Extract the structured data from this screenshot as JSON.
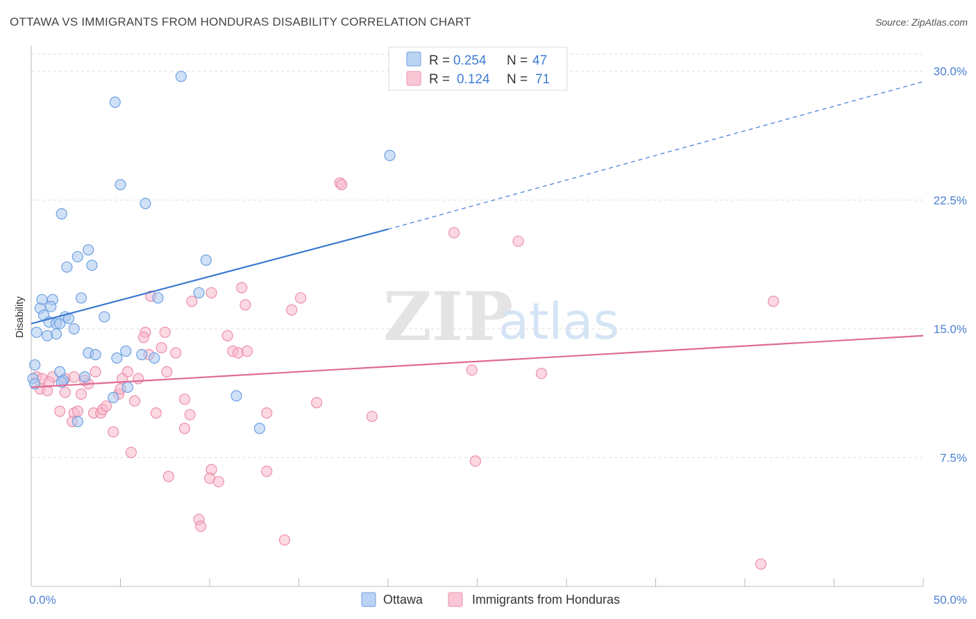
{
  "header": {
    "title": "OTTAWA VS IMMIGRANTS FROM HONDURAS DISABILITY CORRELATION CHART",
    "source": "Source: ZipAtlas.com"
  },
  "watermark": {
    "zip": "ZIP",
    "atlas": "atlas"
  },
  "legend": {
    "rows": [
      {
        "r_label": "R = ",
        "r_value": "0.254",
        "n_label": "N = ",
        "n_value": "47",
        "color": "#a9c8f0"
      },
      {
        "r_label": "R = ",
        "r_value": "0.124",
        "n_label": "N = ",
        "n_value": "71",
        "color": "#f7b8ca"
      }
    ]
  },
  "chart_data": {
    "type": "scatter",
    "title": "OTTAWA VS IMMIGRANTS FROM HONDURAS DISABILITY CORRELATION CHART",
    "xlabel": "",
    "ylabel": "Disability",
    "xlim": [
      0,
      50
    ],
    "ylim": [
      0,
      31
    ],
    "x_tick_labels": [
      "0.0%",
      "50.0%"
    ],
    "y_ticks": [
      7.5,
      15.0,
      22.5,
      30.0
    ],
    "y_tick_labels": [
      "7.5%",
      "15.0%",
      "22.5%",
      "30.0%"
    ],
    "grid": true,
    "legend_position": "top-center",
    "colors": {
      "ottawa_fill": "#a9c8f0",
      "ottawa_stroke": "#6d9fe0",
      "ottawa_line": "#3a78d0",
      "honduras_fill": "#f7b8ca",
      "honduras_stroke": "#ec8fab",
      "honduras_line": "#e06a93",
      "axis_label": "#4a7fd0",
      "grid": "#dddddd"
    },
    "series": [
      {
        "name": "Ottawa",
        "color": "#a9c8f0",
        "trend": {
          "x0": 0,
          "y0": 15.3,
          "x1": 20,
          "y1": 20.8,
          "x_dash_end": 50,
          "y_dash_end": 29.4
        },
        "points": [
          [
            8.4,
            29.7
          ],
          [
            4.7,
            28.2
          ],
          [
            20.1,
            25.1
          ],
          [
            5.0,
            23.4
          ],
          [
            6.4,
            22.3
          ],
          [
            1.7,
            21.7
          ],
          [
            3.2,
            19.6
          ],
          [
            9.8,
            19.0
          ],
          [
            2.6,
            19.2
          ],
          [
            2.0,
            18.6
          ],
          [
            3.4,
            18.7
          ],
          [
            0.6,
            16.7
          ],
          [
            1.2,
            16.7
          ],
          [
            2.8,
            16.8
          ],
          [
            9.4,
            17.1
          ],
          [
            7.1,
            16.8
          ],
          [
            0.5,
            16.2
          ],
          [
            1.1,
            16.3
          ],
          [
            0.7,
            15.8
          ],
          [
            1.0,
            15.4
          ],
          [
            1.9,
            15.7
          ],
          [
            2.1,
            15.6
          ],
          [
            4.1,
            15.7
          ],
          [
            1.4,
            15.3
          ],
          [
            1.6,
            15.3
          ],
          [
            2.4,
            15.0
          ],
          [
            0.3,
            14.8
          ],
          [
            1.4,
            14.7
          ],
          [
            0.9,
            14.6
          ],
          [
            5.3,
            13.7
          ],
          [
            3.2,
            13.6
          ],
          [
            3.6,
            13.5
          ],
          [
            4.8,
            13.3
          ],
          [
            6.2,
            13.5
          ],
          [
            6.9,
            13.3
          ],
          [
            0.2,
            12.9
          ],
          [
            1.6,
            12.5
          ],
          [
            3.0,
            12.2
          ],
          [
            1.8,
            12.0
          ],
          [
            0.1,
            12.1
          ],
          [
            5.4,
            11.6
          ],
          [
            4.6,
            11.0
          ],
          [
            11.5,
            11.1
          ],
          [
            2.6,
            9.6
          ],
          [
            12.8,
            9.2
          ],
          [
            0.2,
            11.8
          ],
          [
            1.7,
            11.9
          ]
        ]
      },
      {
        "name": "Immigrants from Honduras",
        "color": "#f7b8ca",
        "trend": {
          "x0": 0,
          "y0": 11.6,
          "x1": 50,
          "y1": 14.6
        },
        "points": [
          [
            17.3,
            23.5
          ],
          [
            17.4,
            23.4
          ],
          [
            23.7,
            20.6
          ],
          [
            27.3,
            20.1
          ],
          [
            41.6,
            16.6
          ],
          [
            11.8,
            17.4
          ],
          [
            15.1,
            16.8
          ],
          [
            6.7,
            16.9
          ],
          [
            9.0,
            16.6
          ],
          [
            10.1,
            17.1
          ],
          [
            12.0,
            16.4
          ],
          [
            14.6,
            16.1
          ],
          [
            6.4,
            14.8
          ],
          [
            7.5,
            14.8
          ],
          [
            6.3,
            14.5
          ],
          [
            11.0,
            14.6
          ],
          [
            6.6,
            13.5
          ],
          [
            7.3,
            13.9
          ],
          [
            8.1,
            13.6
          ],
          [
            11.3,
            13.7
          ],
          [
            11.6,
            13.6
          ],
          [
            12.1,
            13.7
          ],
          [
            3.6,
            12.5
          ],
          [
            5.4,
            12.5
          ],
          [
            7.6,
            12.5
          ],
          [
            24.7,
            12.6
          ],
          [
            28.6,
            12.4
          ],
          [
            0.3,
            12.2
          ],
          [
            0.6,
            12.1
          ],
          [
            1.2,
            12.2
          ],
          [
            1.9,
            12.1
          ],
          [
            2.4,
            12.2
          ],
          [
            3.0,
            12.0
          ],
          [
            3.2,
            11.8
          ],
          [
            5.1,
            12.1
          ],
          [
            6.0,
            12.1
          ],
          [
            0.5,
            11.5
          ],
          [
            0.9,
            11.4
          ],
          [
            1.9,
            11.3
          ],
          [
            2.8,
            11.2
          ],
          [
            4.9,
            11.2
          ],
          [
            5.0,
            11.5
          ],
          [
            5.8,
            10.8
          ],
          [
            8.6,
            10.9
          ],
          [
            16.0,
            10.7
          ],
          [
            1.6,
            10.2
          ],
          [
            2.4,
            10.1
          ],
          [
            2.6,
            10.2
          ],
          [
            3.5,
            10.1
          ],
          [
            3.9,
            10.1
          ],
          [
            4.0,
            10.3
          ],
          [
            4.2,
            10.5
          ],
          [
            7.0,
            10.1
          ],
          [
            8.9,
            10.0
          ],
          [
            13.2,
            10.1
          ],
          [
            19.1,
            9.9
          ],
          [
            2.3,
            9.6
          ],
          [
            8.6,
            9.2
          ],
          [
            4.6,
            9.0
          ],
          [
            5.6,
            7.8
          ],
          [
            24.9,
            7.3
          ],
          [
            10.1,
            6.8
          ],
          [
            13.2,
            6.7
          ],
          [
            7.7,
            6.4
          ],
          [
            10.0,
            6.3
          ],
          [
            10.5,
            6.1
          ],
          [
            9.4,
            3.9
          ],
          [
            9.5,
            3.5
          ],
          [
            14.2,
            2.7
          ],
          [
            40.9,
            1.3
          ],
          [
            1.0,
            11.9
          ]
        ]
      }
    ]
  },
  "bottom_legend": {
    "items": [
      {
        "label": "Ottawa",
        "color": "#a9c8f0"
      },
      {
        "label": "Immigrants from Honduras",
        "color": "#f7b8ca"
      }
    ]
  }
}
